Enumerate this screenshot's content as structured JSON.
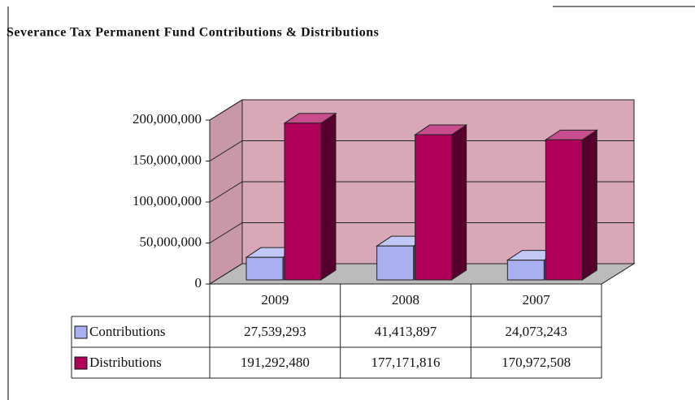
{
  "chart_data": {
    "type": "bar",
    "title": "Severance Tax Permanent Fund Contributions & Distributions",
    "categories": [
      "2009",
      "2008",
      "2007"
    ],
    "series": [
      {
        "name": "Contributions",
        "color": "#a8b0f0",
        "values": [
          27539293,
          41413897,
          24073243
        ],
        "value_labels": [
          "27,539,293",
          "41,413,897",
          "24,073,243"
        ]
      },
      {
        "name": "Distributions",
        "color": "#b0005a",
        "values": [
          191292480,
          177171816,
          170972508
        ],
        "value_labels": [
          "191,292,480",
          "177,171,816",
          "170,972,508"
        ]
      }
    ],
    "ylim": [
      0,
      200000000
    ],
    "yticks": [
      0,
      {
        "value": 50000000,
        "label": "50,000,000"
      },
      {
        "value": 100000000,
        "label": "100,000,000"
      },
      {
        "value": 150000000,
        "label": "150,000,000"
      },
      {
        "value": 200000000,
        "label": "200,000,000"
      }
    ],
    "grid": true
  }
}
